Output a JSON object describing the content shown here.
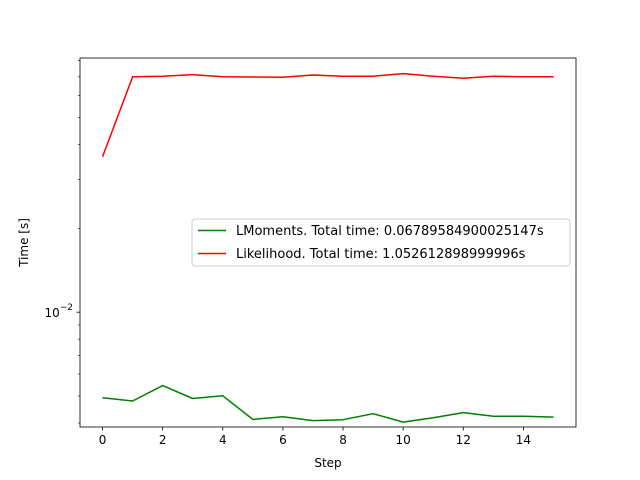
{
  "chart_data": {
    "type": "line",
    "title": "",
    "xlabel": "Step",
    "ylabel": "Time [s]",
    "yscale": "log",
    "xlim": [
      -0.75,
      15.75
    ],
    "ylim": [
      0.00387,
      0.0818
    ],
    "x_ticks": [
      0,
      2,
      4,
      6,
      8,
      10,
      12,
      14
    ],
    "y_tick_major": {
      "value": 0.01,
      "base": "10",
      "exponent": "−2"
    },
    "grid": false,
    "legend_position": "center-right",
    "x": [
      0,
      1,
      2,
      3,
      4,
      5,
      6,
      7,
      8,
      9,
      10,
      11,
      12,
      13,
      14,
      15
    ],
    "series": [
      {
        "name": "LMoments. Total time: 0.06789584900025147s",
        "color": "#008000",
        "values": [
          0.00493,
          0.0048,
          0.00545,
          0.0049,
          0.00501,
          0.00412,
          0.00421,
          0.00408,
          0.00411,
          0.00432,
          0.00403,
          0.00418,
          0.00436,
          0.00423,
          0.00423,
          0.0042
        ]
      },
      {
        "name": "Likelihood. Total time: 1.052612898999996s",
        "color": "#ff0000",
        "values": [
          0.0361,
          0.07,
          0.0703,
          0.0713,
          0.07,
          0.0699,
          0.0698,
          0.0711,
          0.0703,
          0.0704,
          0.0719,
          0.0704,
          0.0692,
          0.0703,
          0.0701,
          0.07
        ]
      }
    ]
  }
}
